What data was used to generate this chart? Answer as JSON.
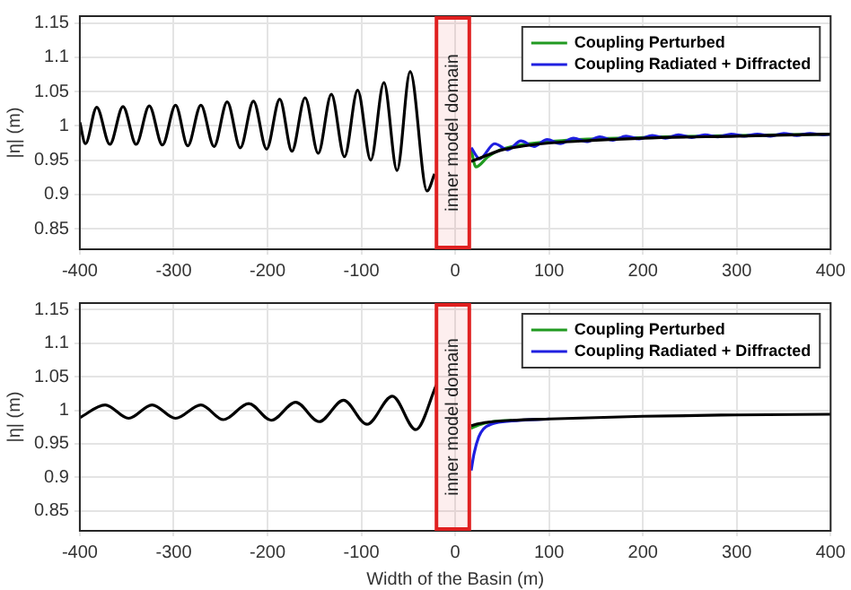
{
  "chart_data": [
    {
      "type": "line",
      "ylabel": "|η| (m)",
      "xlim": [
        -400,
        400
      ],
      "xticks": [
        -400,
        -300,
        -200,
        -100,
        0,
        100,
        200,
        300,
        400
      ],
      "ylim": [
        0.82,
        1.16
      ],
      "yticks": [
        0.85,
        0.9,
        0.95,
        1,
        1.05,
        1.1,
        1.15
      ],
      "grid": true,
      "legend": "top right",
      "marker": "none",
      "line_style": "solid",
      "bands": [
        {
          "axis": "x",
          "from": -20,
          "to": 15,
          "label": "inner model domain",
          "color": "#e02020"
        }
      ],
      "series": [
        {
          "name": "Coupling Perturbed",
          "color": "#219a21",
          "x": [
            17,
            22,
            35,
            50,
            100,
            200,
            300,
            400
          ],
          "values": [
            0.965,
            0.94,
            0.955,
            0.966,
            0.977,
            0.983,
            0.986,
            0.988
          ]
        },
        {
          "name": "Coupling Radiated + Diffracted",
          "color": "#1f1fe0",
          "x": [
            17,
            26,
            42,
            56,
            70,
            84,
            98,
            112,
            126,
            140,
            154,
            168,
            182,
            196,
            210,
            224,
            238,
            252,
            266,
            280,
            294,
            308,
            322,
            336,
            350,
            364,
            378,
            392,
            400
          ],
          "values": [
            0.968,
            0.952,
            0.974,
            0.965,
            0.978,
            0.97,
            0.98,
            0.974,
            0.982,
            0.977,
            0.984,
            0.979,
            0.985,
            0.981,
            0.986,
            0.982,
            0.987,
            0.983,
            0.987,
            0.984,
            0.988,
            0.985,
            0.988,
            0.985,
            0.989,
            0.986,
            0.989,
            0.987,
            0.988
          ]
        },
        {
          "color": "#000000",
          "x": [
            -400,
            -394,
            -382,
            -368,
            -354,
            -340,
            -326,
            -312,
            -298,
            -285,
            -271,
            -257,
            -243,
            -229,
            -215,
            -201,
            -187,
            -174,
            -160,
            -146,
            -132,
            -118,
            -104,
            -90,
            -76,
            -62,
            -48,
            -30,
            -22,
            null,
            17,
            30,
            50,
            75,
            100,
            150,
            200,
            300,
            400
          ],
          "values": [
            1.005,
            0.974,
            1.027,
            0.973,
            1.028,
            0.973,
            1.029,
            0.972,
            1.03,
            0.971,
            1.03,
            0.97,
            1.035,
            0.968,
            1.036,
            0.966,
            1.039,
            0.963,
            1.041,
            0.96,
            1.046,
            0.955,
            1.052,
            0.95,
            1.063,
            0.935,
            1.079,
            0.905,
            0.93,
            null,
            0.948,
            0.955,
            0.965,
            0.971,
            0.975,
            0.979,
            0.982,
            0.985,
            0.988
          ]
        }
      ]
    },
    {
      "type": "line",
      "xlabel": "Width of the Basin (m)",
      "ylabel": "|η| (m)",
      "xlim": [
        -400,
        400
      ],
      "xticks": [
        -400,
        -300,
        -200,
        -100,
        0,
        100,
        200,
        300,
        400
      ],
      "ylim": [
        0.82,
        1.16
      ],
      "yticks": [
        0.85,
        0.9,
        0.95,
        1,
        1.05,
        1.1,
        1.15
      ],
      "grid": true,
      "legend": "top right",
      "marker": "none",
      "line_style": "solid",
      "bands": [
        {
          "axis": "x",
          "from": -20,
          "to": 15,
          "label": "inner model domain",
          "color": "#e02020"
        }
      ],
      "series": [
        {
          "name": "Coupling Perturbed",
          "color": "#219a21",
          "x": [
            17,
            25,
            40,
            60
          ],
          "values": [
            0.973,
            0.978,
            0.983,
            0.985
          ]
        },
        {
          "name": "Coupling Radiated + Diffracted",
          "color": "#1f1fe0",
          "x": [
            17,
            20,
            25,
            30,
            40,
            60,
            100
          ],
          "values": [
            0.91,
            0.935,
            0.96,
            0.972,
            0.98,
            0.984,
            0.987
          ]
        },
        {
          "color": "#000000",
          "x": [
            -400,
            -373,
            -348,
            -323,
            -298,
            -271,
            -247,
            -220,
            -196,
            -170,
            -145,
            -119,
            -94,
            -67,
            -42,
            -20,
            null,
            17,
            25,
            40,
            60,
            100,
            200,
            300,
            400
          ],
          "values": [
            0.989,
            1.008,
            0.988,
            1.008,
            0.988,
            1.008,
            0.986,
            1.01,
            0.985,
            1.012,
            0.983,
            1.015,
            0.979,
            1.021,
            0.971,
            1.038,
            null,
            0.977,
            0.98,
            0.983,
            0.985,
            0.987,
            0.991,
            0.993,
            0.994
          ]
        }
      ]
    }
  ]
}
